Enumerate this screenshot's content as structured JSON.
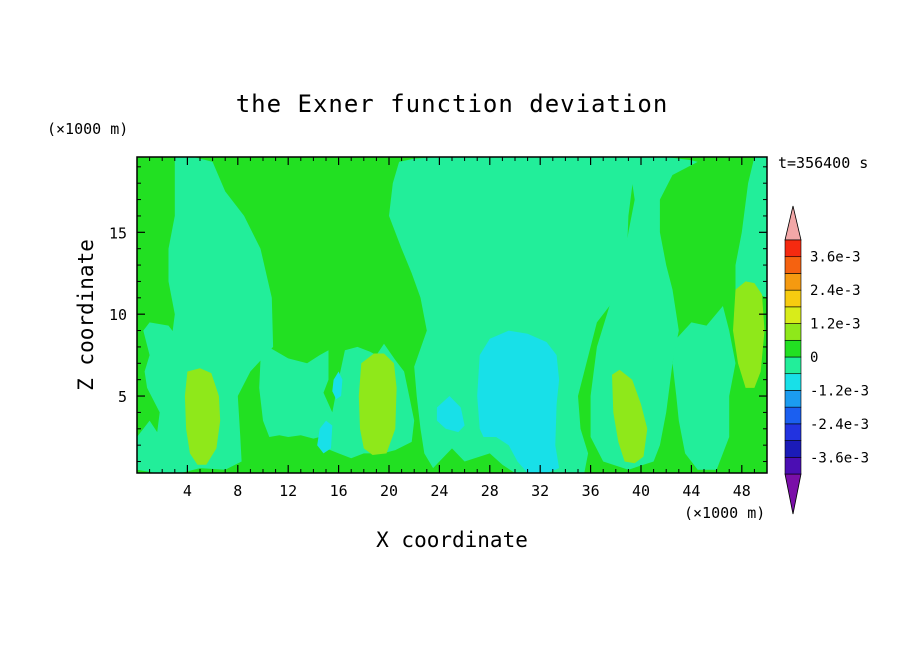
{
  "chart_data": {
    "type": "heatmap",
    "title": "the Exner function deviation",
    "xlabel": "X coordinate",
    "ylabel": "Z coordinate",
    "x_unit": "(×1000 m)",
    "y_unit": "(×1000 m)",
    "time_label": "t=356400 s",
    "xlim": [
      0,
      50
    ],
    "ylim": [
      0.3,
      19.6
    ],
    "x_ticks": [
      4,
      8,
      12,
      16,
      20,
      24,
      28,
      32,
      36,
      40,
      44,
      48
    ],
    "y_ticks": [
      5,
      10,
      15
    ],
    "colorbar": {
      "levels": [
        {
          "label": "",
          "color": "#7a0fa8"
        },
        {
          "label": "-3.6e-3",
          "color": "#4b0eb3"
        },
        {
          "label": "",
          "color": "#1b1bb8"
        },
        {
          "label": "-2.4e-3",
          "color": "#2233e0"
        },
        {
          "label": "",
          "color": "#1b5ff0"
        },
        {
          "label": "-1.2e-3",
          "color": "#1b9cf0"
        },
        {
          "label": "",
          "color": "#18e0e8"
        },
        {
          "label": "0",
          "color": "#22ee9a"
        },
        {
          "label": "",
          "color": "#22e022"
        },
        {
          "label": "1.2e-3",
          "color": "#8fe81a"
        },
        {
          "label": "",
          "color": "#d8ec1a"
        },
        {
          "label": "2.4e-3",
          "color": "#f7cc10"
        },
        {
          "label": "",
          "color": "#f59a10"
        },
        {
          "label": "3.6e-3",
          "color": "#f56210"
        },
        {
          "label": "",
          "color": "#f52a10"
        },
        {
          "label": "",
          "color": "#f2a7a7"
        }
      ]
    },
    "regions": [
      {
        "level": "(-1.2e-3, 0)",
        "color": "#22ee9a",
        "points": [
          [
            3,
            19.6
          ],
          [
            4.5,
            19.6
          ],
          [
            6,
            19.3
          ],
          [
            7,
            17.5
          ],
          [
            8.5,
            16
          ],
          [
            9.8,
            14
          ],
          [
            10.7,
            11
          ],
          [
            10.8,
            8
          ],
          [
            9,
            6.5
          ],
          [
            8,
            5
          ],
          [
            8.2,
            2.5
          ],
          [
            8.3,
            1
          ],
          [
            7,
            0.5
          ],
          [
            5,
            0.6
          ],
          [
            3.5,
            0.3
          ],
          [
            1.5,
            0.3
          ],
          [
            0,
            0.5
          ],
          [
            0,
            2.5
          ],
          [
            1,
            3.5
          ],
          [
            1.6,
            2.8
          ],
          [
            1.8,
            4
          ],
          [
            0.8,
            5.5
          ],
          [
            0.6,
            6.5
          ],
          [
            1,
            7.5
          ],
          [
            0.5,
            9
          ],
          [
            1,
            9.5
          ],
          [
            2.5,
            9.3
          ],
          [
            3.2,
            8.6
          ],
          [
            2.5,
            7
          ],
          [
            3,
            10
          ],
          [
            2.5,
            12
          ],
          [
            2.5,
            14
          ],
          [
            3,
            16
          ],
          [
            3,
            18
          ]
        ]
      },
      {
        "level": "(-1.2e-3, 0)",
        "color": "#22ee9a",
        "points": [
          [
            10,
            8.2
          ],
          [
            12,
            7.3
          ],
          [
            13.5,
            7
          ],
          [
            14.5,
            7.5
          ],
          [
            15.2,
            7.8
          ],
          [
            15.2,
            6
          ],
          [
            14.8,
            5.2
          ],
          [
            15.5,
            4
          ],
          [
            16,
            6
          ],
          [
            16.5,
            7.8
          ],
          [
            17.5,
            8
          ],
          [
            18.5,
            7.7
          ],
          [
            19,
            7.5
          ],
          [
            19.6,
            8.2
          ],
          [
            20.5,
            7.2
          ],
          [
            21.2,
            6.5
          ],
          [
            21.6,
            5
          ],
          [
            22,
            3.5
          ],
          [
            21.8,
            2.2
          ],
          [
            20.5,
            1.7
          ],
          [
            19.5,
            1.5
          ],
          [
            18,
            1.5
          ],
          [
            17,
            1.2
          ],
          [
            16,
            1.5
          ],
          [
            15,
            1.8
          ],
          [
            14.5,
            2.5
          ],
          [
            14,
            2.4
          ],
          [
            13,
            2.6
          ],
          [
            12,
            2.5
          ],
          [
            11.3,
            2.6
          ],
          [
            10.5,
            2.5
          ],
          [
            10,
            3.5
          ],
          [
            9.7,
            5.5
          ],
          [
            9.8,
            7.2
          ]
        ]
      },
      {
        "level": "(-1.2e-3, 0)",
        "color": "#22ee9a",
        "points": [
          [
            20.8,
            19.3
          ],
          [
            22,
            19.5
          ],
          [
            24,
            19.6
          ],
          [
            28,
            19.6
          ],
          [
            32,
            19.6
          ],
          [
            36,
            19.6
          ],
          [
            39,
            19.6
          ],
          [
            39.5,
            19
          ],
          [
            39,
            16
          ],
          [
            38.8,
            12
          ],
          [
            37.5,
            10.5
          ],
          [
            36.5,
            9.5
          ],
          [
            36,
            8
          ],
          [
            35,
            5
          ],
          [
            35.2,
            3
          ],
          [
            35.8,
            1.5
          ],
          [
            35.5,
            0.3
          ],
          [
            33,
            0.3
          ],
          [
            30,
            0.3
          ],
          [
            29,
            0.8
          ],
          [
            28,
            1.5
          ],
          [
            26,
            1
          ],
          [
            25,
            1.8
          ],
          [
            24,
            1
          ],
          [
            23.5,
            0.6
          ],
          [
            22.8,
            1.5
          ],
          [
            22.5,
            3
          ],
          [
            22.2,
            5
          ],
          [
            22,
            6.8
          ],
          [
            23,
            9
          ],
          [
            22.5,
            11
          ],
          [
            21.8,
            12.5
          ],
          [
            21,
            14
          ],
          [
            20,
            16
          ],
          [
            20.3,
            18
          ]
        ]
      },
      {
        "level": "(-1.2e-3, 0)",
        "color": "#22ee9a",
        "points": [
          [
            47,
            9
          ],
          [
            46.5,
            10.5
          ],
          [
            45.2,
            9.3
          ],
          [
            44,
            9.5
          ],
          [
            42.8,
            8.5
          ],
          [
            42.5,
            7
          ],
          [
            42.8,
            5
          ],
          [
            43,
            3.5
          ],
          [
            43.5,
            1.5
          ],
          [
            44.5,
            0.5
          ],
          [
            46,
            0.5
          ],
          [
            47,
            2.5
          ],
          [
            47,
            5
          ],
          [
            47.5,
            7
          ]
        ]
      },
      {
        "level": "(-1.2e-3, 0)",
        "color": "#22ee9a",
        "points": [
          [
            39,
            19.6
          ],
          [
            42,
            19.6
          ],
          [
            44,
            19.4
          ],
          [
            44.5,
            19.3
          ],
          [
            42.5,
            18.5
          ],
          [
            41.5,
            17
          ],
          [
            41.5,
            15
          ],
          [
            42,
            13
          ],
          [
            42.5,
            11.5
          ],
          [
            42.8,
            10
          ],
          [
            43,
            9
          ],
          [
            42.5,
            7
          ],
          [
            42,
            4
          ],
          [
            41.5,
            2
          ],
          [
            41,
            1
          ],
          [
            39,
            0.5
          ],
          [
            37,
            1
          ],
          [
            36,
            2.5
          ],
          [
            36,
            5
          ],
          [
            36.5,
            8
          ],
          [
            37.5,
            10.5
          ],
          [
            38.5,
            12.5
          ],
          [
            39,
            15
          ],
          [
            39.5,
            17
          ]
        ]
      },
      {
        "level": "(-1.2e-3, 0)",
        "color": "#22ee9a",
        "points": [
          [
            42,
            11.5
          ],
          [
            41.7,
            11
          ],
          [
            42,
            10
          ],
          [
            42.5,
            9
          ],
          [
            42.3,
            10.8
          ]
        ]
      },
      {
        "level": "(-1.2e-3, 0)",
        "color": "#22ee9a",
        "points": [
          [
            47.5,
            11.5
          ],
          [
            48.5,
            11.5
          ],
          [
            50,
            11
          ],
          [
            50,
            19.6
          ],
          [
            49,
            19.6
          ],
          [
            48.5,
            18
          ],
          [
            48,
            15
          ],
          [
            47.5,
            13
          ]
        ]
      },
      {
        "level": "(-2.4e-3, -1.2e-3)",
        "color": "#18e0e8",
        "points": [
          [
            27.2,
            7.5
          ],
          [
            28,
            8.5
          ],
          [
            29.5,
            9
          ],
          [
            31,
            8.8
          ],
          [
            32.5,
            8.3
          ],
          [
            33.3,
            7.5
          ],
          [
            33.5,
            6
          ],
          [
            33.3,
            4.5
          ],
          [
            33.2,
            2
          ],
          [
            33.5,
            0.6
          ],
          [
            32.5,
            0.3
          ],
          [
            31,
            0.3
          ],
          [
            30.2,
            1
          ],
          [
            29.5,
            2
          ],
          [
            28.5,
            2.5
          ],
          [
            27.5,
            2.5
          ],
          [
            27.2,
            3
          ],
          [
            27,
            5
          ]
        ]
      },
      {
        "level": "(-2.4e-3, -1.2e-3)",
        "color": "#18e0e8",
        "points": [
          [
            23.8,
            4.3
          ],
          [
            24.8,
            5
          ],
          [
            25.7,
            4.3
          ],
          [
            26,
            3.2
          ],
          [
            25.5,
            2.8
          ],
          [
            24.5,
            3
          ],
          [
            23.8,
            3.5
          ]
        ]
      },
      {
        "level": "(-2.4e-3, -1.2e-3)",
        "color": "#18e0e8",
        "points": [
          [
            14.5,
            3
          ],
          [
            15,
            3.5
          ],
          [
            15.5,
            3.2
          ],
          [
            15.4,
            1.8
          ],
          [
            14.8,
            1.5
          ],
          [
            14.3,
            2
          ]
        ]
      },
      {
        "level": "(-2.4e-3, -1.2e-3)",
        "color": "#18e0e8",
        "points": [
          [
            15.6,
            6
          ],
          [
            16,
            6.5
          ],
          [
            16.3,
            6
          ],
          [
            16.2,
            5
          ],
          [
            15.8,
            4.8
          ],
          [
            15.5,
            5.3
          ]
        ]
      },
      {
        "level": "(0, 1.2e-3)",
        "color": "#8fe81a",
        "points": [
          [
            4,
            6.5
          ],
          [
            5,
            6.7
          ],
          [
            5.9,
            6.4
          ],
          [
            6.5,
            5
          ],
          [
            6.6,
            3.5
          ],
          [
            6.3,
            1.8
          ],
          [
            5.5,
            0.8
          ],
          [
            4.8,
            0.8
          ],
          [
            4.2,
            1.5
          ],
          [
            3.9,
            3
          ],
          [
            3.8,
            5
          ]
        ]
      },
      {
        "level": "(0, 1.2e-3)",
        "color": "#8fe81a",
        "points": [
          [
            17.8,
            7
          ],
          [
            18.8,
            7.6
          ],
          [
            19.6,
            7.6
          ],
          [
            20.4,
            7
          ],
          [
            20.6,
            5.5
          ],
          [
            20.5,
            3
          ],
          [
            19.8,
            1.5
          ],
          [
            18.7,
            1.4
          ],
          [
            18,
            1.8
          ],
          [
            17.7,
            3
          ],
          [
            17.6,
            5
          ]
        ]
      },
      {
        "level": "(0, 1.2e-3)",
        "color": "#8fe81a",
        "points": [
          [
            37.7,
            6.3
          ],
          [
            38.3,
            6.6
          ],
          [
            39.3,
            6
          ],
          [
            40,
            4.5
          ],
          [
            40.5,
            3
          ],
          [
            40.2,
            1.3
          ],
          [
            39.5,
            0.9
          ],
          [
            38.7,
            1
          ],
          [
            38.2,
            2.2
          ],
          [
            37.8,
            4
          ]
        ]
      },
      {
        "level": "(0, 1.2e-3)",
        "color": "#8fe81a",
        "points": [
          [
            47.5,
            11.5
          ],
          [
            48.3,
            12
          ],
          [
            49,
            11.9
          ],
          [
            49.6,
            11.2
          ],
          [
            49.8,
            9
          ],
          [
            49.5,
            6.5
          ],
          [
            49,
            5.5
          ],
          [
            48.3,
            5.5
          ],
          [
            47.7,
            7
          ],
          [
            47.3,
            9
          ]
        ]
      }
    ]
  }
}
